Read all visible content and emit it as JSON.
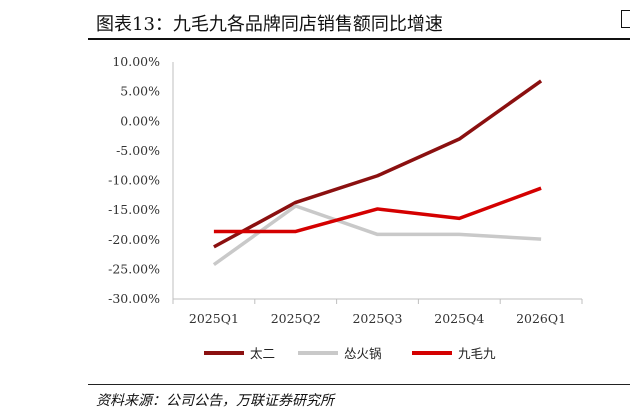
{
  "header": {
    "title": "图表13：九毛九各品牌同店销售额同比增速"
  },
  "source": "资料来源：公司公告，万联证券研究所",
  "colors": {
    "太二": "#8b1010",
    "怂火锅": "#c9c9c9",
    "九毛九": "#d40000"
  },
  "chart_data": {
    "type": "line",
    "title": "",
    "xlabel": "",
    "ylabel": "",
    "categories": [
      "2025Q1",
      "2025Q2",
      "2025Q3",
      "2025Q4",
      "2026Q1"
    ],
    "yticks": [
      "10.00%",
      "5.00%",
      "0.00%",
      "-5.00%",
      "-10.00%",
      "-15.00%",
      "-20.00%",
      "-25.00%",
      "-30.00%"
    ],
    "ylim": [
      -30,
      10
    ],
    "grid": false,
    "legend": "bottom",
    "series": [
      {
        "name": "太二",
        "color": "#8b1010",
        "values": [
          -21.2,
          -13.7,
          -9.2,
          -3.0,
          6.8
        ]
      },
      {
        "name": "怂火锅",
        "color": "#c9c9c9",
        "values": [
          -24.2,
          -14.3,
          -19.1,
          -19.1,
          -19.9
        ]
      },
      {
        "name": "九毛九",
        "color": "#d40000",
        "values": [
          -18.6,
          -18.6,
          -14.8,
          -16.4,
          -11.3
        ]
      }
    ]
  }
}
